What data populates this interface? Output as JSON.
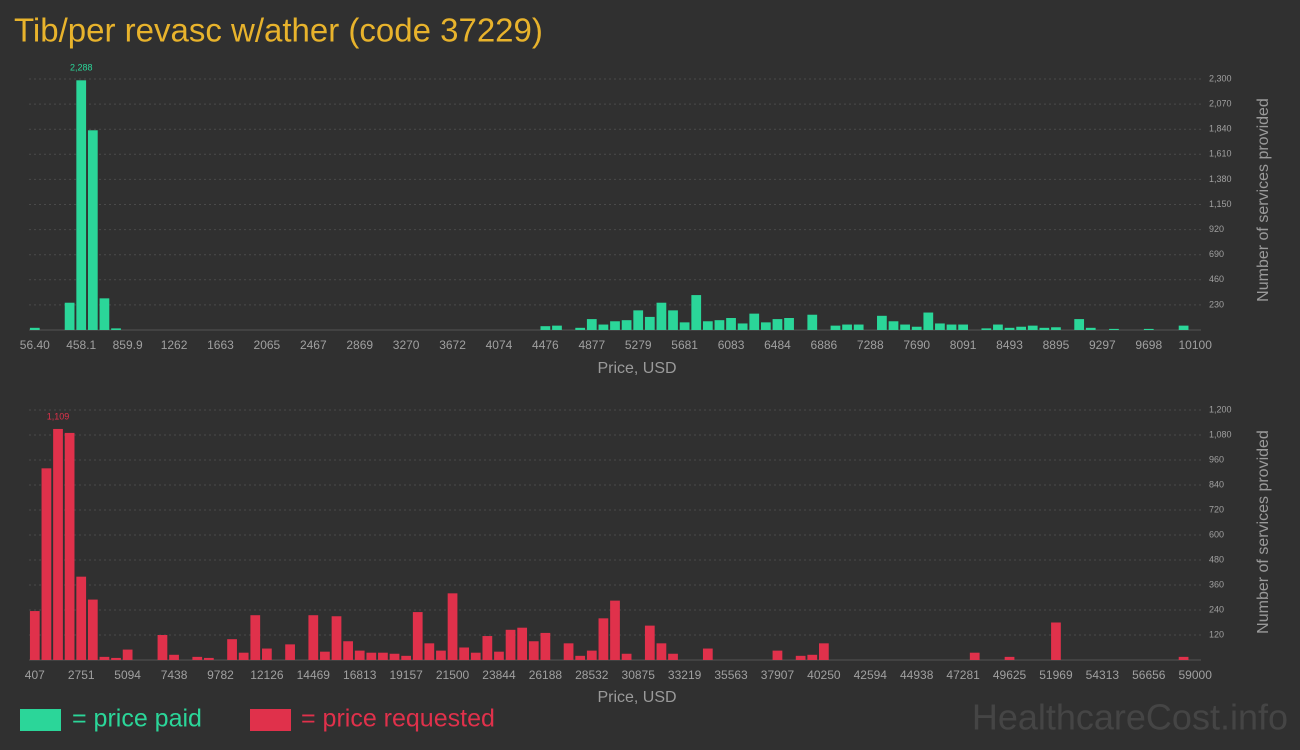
{
  "title": "Tib/per revasc w/ather (code 37229)",
  "watermark": "HealthcareCost.info",
  "chart_data": [
    {
      "type": "bar",
      "x_label": "Price, USD",
      "y_label": "Number of services provided",
      "grid": true,
      "categories": [
        "56.40",
        null,
        null,
        null,
        "458.1",
        null,
        null,
        null,
        "859.9",
        null,
        null,
        null,
        "1262",
        null,
        null,
        null,
        "1663",
        null,
        null,
        null,
        "2065",
        null,
        null,
        null,
        "2467",
        null,
        null,
        null,
        "2869",
        null,
        null,
        null,
        "3270",
        null,
        null,
        null,
        "3672",
        null,
        null,
        null,
        "4074",
        null,
        null,
        null,
        "4476",
        null,
        null,
        null,
        "4877",
        null,
        null,
        null,
        "5279",
        null,
        null,
        null,
        "5681",
        null,
        null,
        null,
        "6083",
        null,
        null,
        null,
        "6484",
        null,
        null,
        null,
        "6886",
        null,
        null,
        null,
        "7288",
        null,
        null,
        null,
        "7690",
        null,
        null,
        null,
        "8091",
        null,
        null,
        null,
        "8493",
        null,
        null,
        null,
        "8895",
        null,
        null,
        null,
        "9297",
        null,
        null,
        null,
        "9698",
        null,
        null,
        null,
        "10100"
      ],
      "series": [
        {
          "name": "= price paid",
          "color": "#2bd699",
          "values": [
            20,
            0,
            0,
            250,
            2288,
            1830,
            290,
            15,
            0,
            0,
            0,
            0,
            0,
            0,
            0,
            0,
            0,
            0,
            0,
            0,
            0,
            0,
            0,
            0,
            0,
            0,
            0,
            0,
            0,
            0,
            0,
            0,
            0,
            0,
            0,
            0,
            0,
            0,
            0,
            0,
            0,
            0,
            0,
            0,
            35,
            40,
            0,
            20,
            100,
            50,
            80,
            90,
            180,
            120,
            250,
            180,
            70,
            320,
            80,
            90,
            110,
            60,
            150,
            70,
            100,
            110,
            0,
            140,
            0,
            40,
            50,
            50,
            0,
            130,
            80,
            50,
            30,
            160,
            60,
            50,
            50,
            0,
            15,
            50,
            20,
            30,
            40,
            20,
            25,
            0,
            100,
            20,
            0,
            10,
            0,
            0,
            10,
            0,
            0,
            40,
            0
          ],
          "value_labels": [
            null,
            null,
            null,
            null,
            "2,288",
            null,
            null,
            null,
            null,
            null,
            null,
            null,
            null,
            null,
            null,
            null,
            null,
            null,
            null,
            null,
            null,
            null,
            null,
            null,
            null,
            null,
            null,
            null,
            null,
            null,
            null,
            null,
            null,
            null,
            null,
            null,
            null,
            null,
            null,
            null,
            null,
            null,
            null,
            null,
            null,
            null,
            null,
            null,
            null,
            null,
            null,
            null,
            null,
            null,
            null,
            null,
            null,
            null,
            null,
            null,
            null,
            null,
            null,
            null,
            null,
            null,
            null,
            null,
            null,
            null,
            null,
            null,
            null,
            null,
            null,
            null,
            null,
            null,
            null,
            null,
            null,
            null,
            null,
            null,
            null,
            null,
            null,
            null,
            null,
            null,
            null,
            null,
            null,
            null,
            null,
            null,
            null,
            null,
            null,
            null,
            null
          ]
        }
      ],
      "ylim": [
        0,
        2300
      ],
      "yticks": [
        230,
        460,
        690,
        920,
        {
          "value": 1150,
          "label": "1,150"
        },
        {
          "value": 1380,
          "label": "1,380"
        },
        {
          "value": 1610,
          "label": "1,610"
        },
        {
          "value": 1840,
          "label": "1,840"
        },
        {
          "value": 2070,
          "label": "2,070"
        },
        {
          "value": 2300,
          "label": "2,300"
        }
      ]
    },
    {
      "type": "bar",
      "x_label": "Price, USD",
      "y_label": "Number of services provided",
      "grid": true,
      "categories": [
        "407",
        null,
        null,
        null,
        "2751",
        null,
        null,
        null,
        "5094",
        null,
        null,
        null,
        "7438",
        null,
        null,
        null,
        "9782",
        null,
        null,
        null,
        "12126",
        null,
        null,
        null,
        "14469",
        null,
        null,
        null,
        "16813",
        null,
        null,
        null,
        "19157",
        null,
        null,
        null,
        "21500",
        null,
        null,
        null,
        "23844",
        null,
        null,
        null,
        "26188",
        null,
        null,
        null,
        "28532",
        null,
        null,
        null,
        "30875",
        null,
        null,
        null,
        "33219",
        null,
        null,
        null,
        "35563",
        null,
        null,
        null,
        "37907",
        null,
        null,
        null,
        "40250",
        null,
        null,
        null,
        "42594",
        null,
        null,
        null,
        "44938",
        null,
        null,
        null,
        "47281",
        null,
        null,
        null,
        "49625",
        null,
        null,
        null,
        "51969",
        null,
        null,
        null,
        "54313",
        null,
        null,
        null,
        "56656",
        null,
        null,
        null,
        "59000"
      ],
      "series": [
        {
          "name": "= price requested",
          "color": "#e0314b",
          "values": [
            235,
            920,
            1109,
            1090,
            400,
            290,
            15,
            10,
            50,
            0,
            0,
            120,
            25,
            0,
            15,
            10,
            0,
            100,
            35,
            215,
            55,
            0,
            75,
            0,
            215,
            40,
            210,
            90,
            45,
            35,
            35,
            30,
            20,
            230,
            80,
            45,
            320,
            60,
            35,
            115,
            40,
            145,
            155,
            90,
            130,
            0,
            80,
            20,
            45,
            200,
            285,
            30,
            0,
            165,
            80,
            30,
            0,
            0,
            55,
            0,
            0,
            0,
            0,
            0,
            45,
            0,
            20,
            25,
            80,
            0,
            0,
            0,
            0,
            0,
            0,
            0,
            0,
            0,
            0,
            0,
            0,
            35,
            0,
            0,
            15,
            0,
            0,
            0,
            180,
            0,
            0,
            0,
            0,
            0,
            0,
            0,
            0,
            0,
            0,
            15,
            0
          ],
          "value_labels": [
            null,
            null,
            "1,109",
            null,
            null,
            null,
            null,
            null,
            null,
            null,
            null,
            null,
            null,
            null,
            null,
            null,
            null,
            null,
            null,
            null,
            null,
            null,
            null,
            null,
            null,
            null,
            null,
            null,
            null,
            null,
            null,
            null,
            null,
            null,
            null,
            null,
            null,
            null,
            null,
            null,
            null,
            null,
            null,
            null,
            null,
            null,
            null,
            null,
            null,
            null,
            null,
            null,
            null,
            null,
            null,
            null,
            null,
            null,
            null,
            null,
            null,
            null,
            null,
            null,
            null,
            null,
            null,
            null,
            null,
            null,
            null,
            null,
            null,
            null,
            null,
            null,
            null,
            null,
            null,
            null,
            null,
            null,
            null,
            null,
            null,
            null,
            null,
            null,
            null,
            null,
            null,
            null,
            null,
            null,
            null,
            null,
            null,
            null,
            null,
            null,
            null
          ]
        }
      ],
      "ylim": [
        0,
        1200
      ],
      "yticks": [
        120,
        240,
        360,
        480,
        600,
        720,
        840,
        960,
        {
          "value": 1080,
          "label": "1,080"
        },
        {
          "value": 1200,
          "label": "1,200"
        }
      ]
    }
  ]
}
